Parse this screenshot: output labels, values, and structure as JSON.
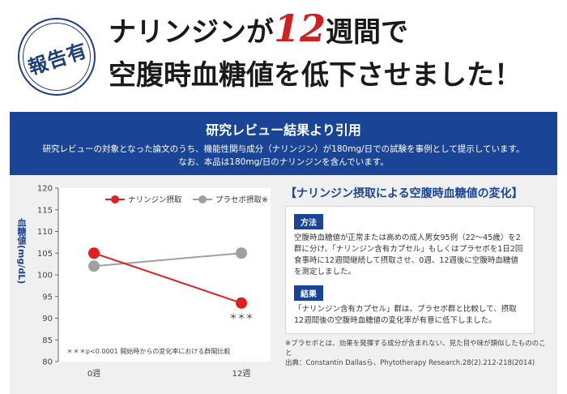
{
  "header": {
    "seal": "報告有",
    "line1_before": "ナリンジンが",
    "line1_accent": "12",
    "line1_after": "週間で",
    "line2": "空腹時血糖値を低下させました！"
  },
  "banner": {
    "title": "研究レビュー結果より引用",
    "line1": "研究レビューの対象となった論文のうち、機能性関与成分（ナリンジン）が180mg/日での試験を事例として提示しています。",
    "line2": "なお、本品は180mg/日のナリンジンを含んでいます。"
  },
  "right": {
    "title": "【ナリンジン摂取による空腹時血糖値の変化】",
    "method_tag": "方法",
    "method_text": "空腹時血糖値が正常または高めの成人男女95例（22〜45歳）を2群に分け、「ナリンジン含有カプセル」もしくはプラセボを1日2回食事時に12週間継続して摂取させ、0週、12週後に空腹時血糖値を測定しました。",
    "result_tag": "結果",
    "result_text": "「ナリンジン含有カプセル」群は、プラセボ群と比較して、摂取12週間後の空腹時血糖値の変化率が有意に低下しました。",
    "note1": "※プラセボとは、効果を発揮する成分が含まれない、見た目や味が類似したもののこと",
    "note2": "出典：Constantin Dallasら、Phytotherapy Research.28(2).212-218(2014)"
  },
  "chart_data": {
    "type": "line",
    "x": [
      "0週",
      "12週"
    ],
    "ylabel": "血糖値(mg/dL)",
    "ylim": [
      80,
      120
    ],
    "yticks": [
      80,
      85,
      90,
      95,
      100,
      105,
      110,
      115,
      120
    ],
    "series": [
      {
        "name": "ナリンジン摂取",
        "values": [
          105,
          93.5
        ],
        "color": "#e02020"
      },
      {
        "name": "プラセボ摂取※",
        "values": [
          102,
          105
        ],
        "color": "#a0a0a0"
      }
    ],
    "significance_mark": "＊＊＊",
    "footnote": "＊＊＊p<0.0001 開始時からの変化率における群間比較",
    "legend_position": "top"
  }
}
